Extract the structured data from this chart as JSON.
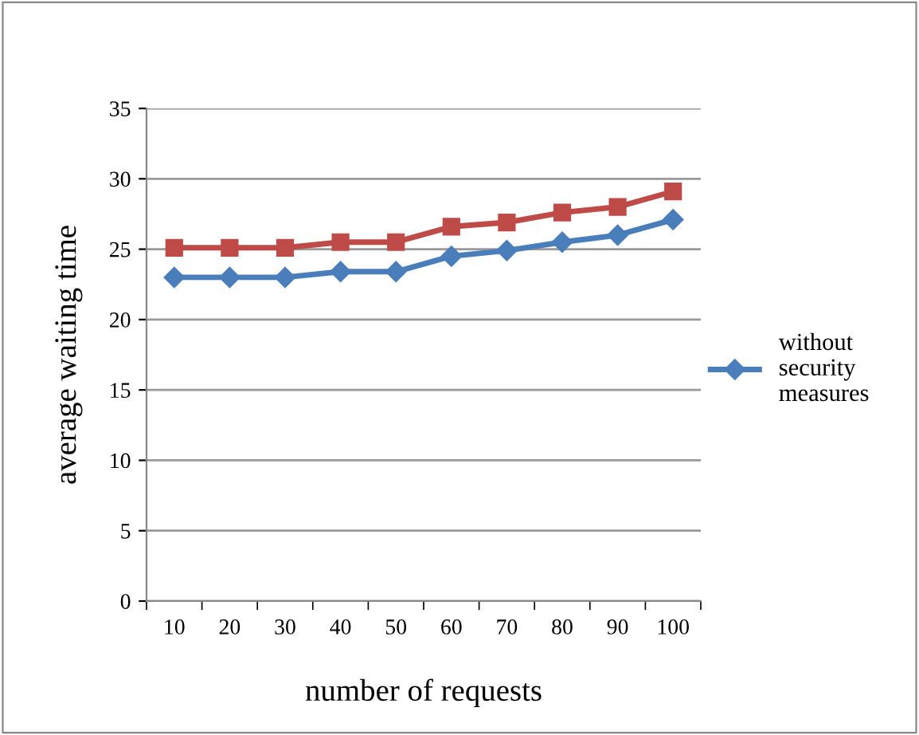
{
  "chart_data": {
    "type": "line",
    "xlabel": "number of requests",
    "ylabel": "average waiting time",
    "categories": [
      "10",
      "20",
      "30",
      "40",
      "50",
      "60",
      "70",
      "80",
      "90",
      "100"
    ],
    "series": [
      {
        "name": "without security measures",
        "color": "#4a7ebb",
        "marker": "diamond",
        "values": [
          23.0,
          23.0,
          23.0,
          23.4,
          23.4,
          24.5,
          24.9,
          25.5,
          26.0,
          27.1
        ]
      },
      {
        "color": "#be4b48",
        "marker": "square",
        "values": [
          25.1,
          25.1,
          25.1,
          25.5,
          25.5,
          26.6,
          26.9,
          27.6,
          28.0,
          29.1
        ]
      }
    ],
    "ylim": [
      0,
      35
    ],
    "yticks": [
      0,
      5,
      10,
      15,
      20,
      25,
      30,
      35
    ],
    "grid": "y",
    "legend": "right",
    "line_style": "solid"
  }
}
